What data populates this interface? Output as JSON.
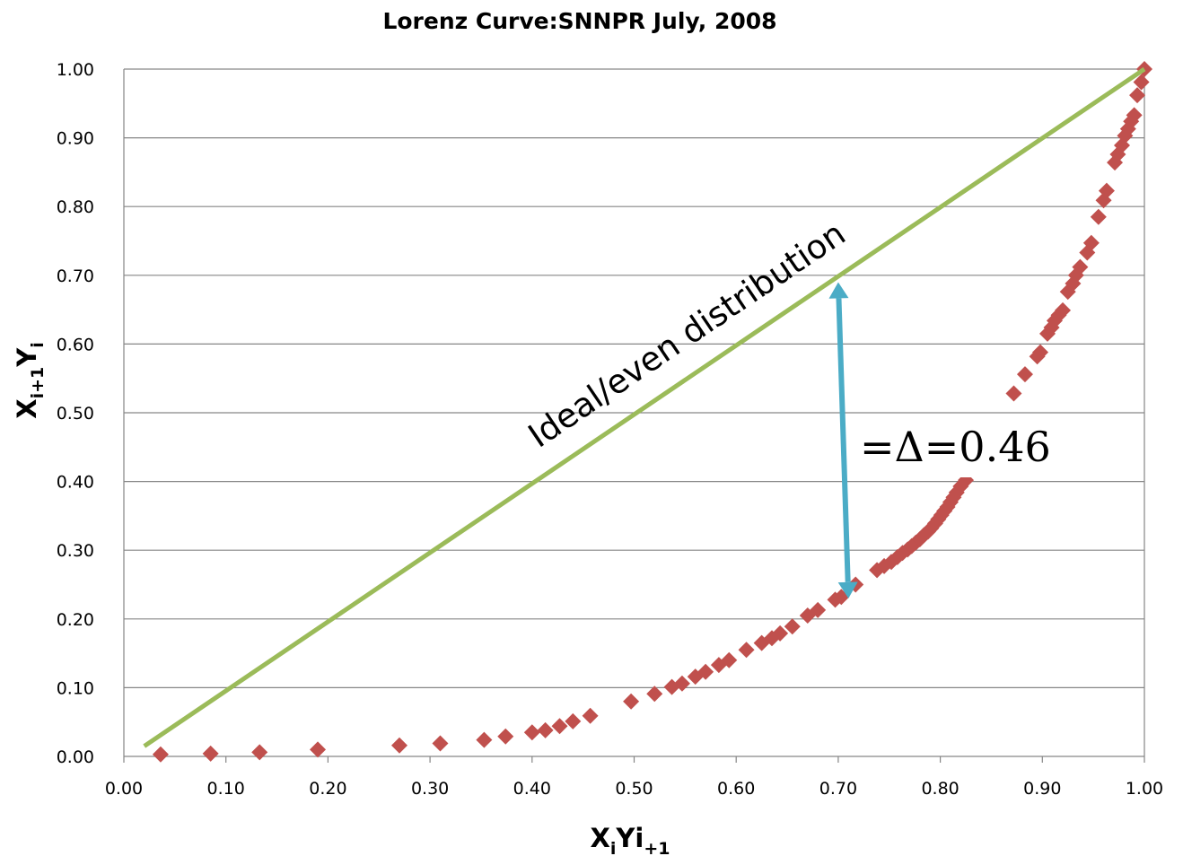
{
  "chart_data": {
    "type": "scatter",
    "title": "Lorenz Curve:SNNPR  July, 2008",
    "xlabel": {
      "main": "X",
      "sub1": "i",
      "mid": "Yi",
      "sub2": "+1"
    },
    "ylabel": {
      "main1": "X",
      "sub1": "i+1",
      "main2": "Y",
      "sub2": "i"
    },
    "xlim": [
      0,
      1
    ],
    "ylim": [
      0,
      1
    ],
    "x_ticks": [
      "0.00",
      "0.10",
      "0.20",
      "0.30",
      "0.40",
      "0.50",
      "0.60",
      "0.70",
      "0.80",
      "0.90",
      "1.00"
    ],
    "y_ticks": [
      "0.00",
      "0.10",
      "0.20",
      "0.30",
      "0.40",
      "0.50",
      "0.60",
      "0.70",
      "0.80",
      "0.90",
      "1.00"
    ],
    "grid": true,
    "colors": {
      "points": "#C0504D",
      "equality_line": "#9BBB59",
      "arrow": "#4BACC6",
      "grid": "#868686"
    },
    "equality_line": {
      "label": "Ideal/even distribution",
      "from": [
        0.02,
        0.015
      ],
      "to": [
        1.0,
        1.0
      ]
    },
    "gap_arrow": {
      "label": "=Δ=0.46",
      "x_top": 0.7,
      "y_top": 0.69,
      "x_bottom": 0.71,
      "y_bottom": 0.23
    },
    "series": [
      {
        "marker": "diamond",
        "points": [
          [
            0.036,
            0.003
          ],
          [
            0.085,
            0.004
          ],
          [
            0.133,
            0.006
          ],
          [
            0.19,
            0.01
          ],
          [
            0.27,
            0.016
          ],
          [
            0.31,
            0.019
          ],
          [
            0.353,
            0.024
          ],
          [
            0.374,
            0.029
          ],
          [
            0.4,
            0.035
          ],
          [
            0.413,
            0.038
          ],
          [
            0.427,
            0.044
          ],
          [
            0.44,
            0.051
          ],
          [
            0.457,
            0.059
          ],
          [
            0.497,
            0.08
          ],
          [
            0.52,
            0.091
          ],
          [
            0.537,
            0.101
          ],
          [
            0.547,
            0.106
          ],
          [
            0.56,
            0.116
          ],
          [
            0.57,
            0.123
          ],
          [
            0.583,
            0.133
          ],
          [
            0.593,
            0.14
          ],
          [
            0.61,
            0.155
          ],
          [
            0.625,
            0.165
          ],
          [
            0.635,
            0.172
          ],
          [
            0.643,
            0.179
          ],
          [
            0.655,
            0.189
          ],
          [
            0.67,
            0.205
          ],
          [
            0.68,
            0.213
          ],
          [
            0.697,
            0.228
          ],
          [
            0.703,
            0.232
          ],
          [
            0.717,
            0.25
          ],
          [
            0.738,
            0.271
          ],
          [
            0.745,
            0.277
          ],
          [
            0.752,
            0.283
          ],
          [
            0.758,
            0.29
          ],
          [
            0.763,
            0.296
          ],
          [
            0.768,
            0.301
          ],
          [
            0.772,
            0.306
          ],
          [
            0.776,
            0.311
          ],
          [
            0.78,
            0.316
          ],
          [
            0.784,
            0.322
          ],
          [
            0.788,
            0.327
          ],
          [
            0.791,
            0.332
          ],
          [
            0.795,
            0.339
          ],
          [
            0.798,
            0.345
          ],
          [
            0.801,
            0.351
          ],
          [
            0.804,
            0.357
          ],
          [
            0.807,
            0.363
          ],
          [
            0.81,
            0.37
          ],
          [
            0.813,
            0.377
          ],
          [
            0.816,
            0.384
          ],
          [
            0.82,
            0.393
          ],
          [
            0.825,
            0.402
          ],
          [
            0.872,
            0.528
          ],
          [
            0.883,
            0.556
          ],
          [
            0.895,
            0.582
          ],
          [
            0.898,
            0.588
          ],
          [
            0.905,
            0.615
          ],
          [
            0.909,
            0.624
          ],
          [
            0.912,
            0.634
          ],
          [
            0.916,
            0.642
          ],
          [
            0.92,
            0.649
          ],
          [
            0.925,
            0.676
          ],
          [
            0.93,
            0.688
          ],
          [
            0.933,
            0.7
          ],
          [
            0.937,
            0.712
          ],
          [
            0.944,
            0.733
          ],
          [
            0.948,
            0.747
          ],
          [
            0.955,
            0.785
          ],
          [
            0.96,
            0.809
          ],
          [
            0.963,
            0.823
          ],
          [
            0.971,
            0.864
          ],
          [
            0.974,
            0.876
          ],
          [
            0.978,
            0.889
          ],
          [
            0.981,
            0.903
          ],
          [
            0.984,
            0.913
          ],
          [
            0.987,
            0.924
          ],
          [
            0.99,
            0.933
          ],
          [
            0.993,
            0.962
          ],
          [
            0.997,
            0.981
          ],
          [
            1.0,
            1.0
          ]
        ]
      }
    ]
  }
}
